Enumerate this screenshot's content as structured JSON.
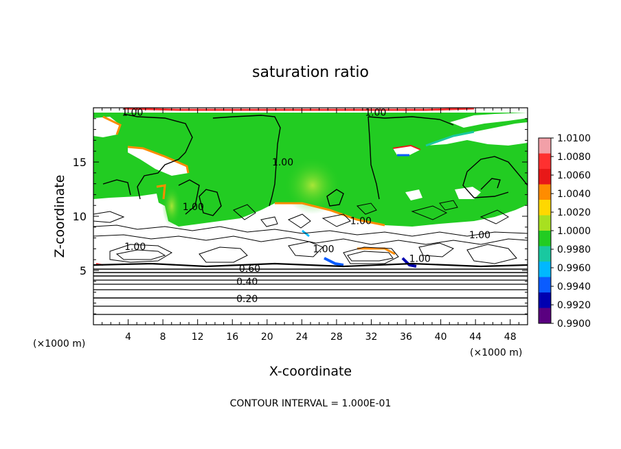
{
  "chart_data": {
    "type": "heatmap",
    "title": "saturation ratio",
    "xlabel": "X-coordinate",
    "ylabel": "Z-coordinate",
    "x_unit": "(×1000 m)",
    "z_unit": "(×1000 m)",
    "footer": "CONTOUR INTERVAL = 1.000E-01",
    "xlim": [
      0,
      50
    ],
    "ylim": [
      0,
      20
    ],
    "x_ticks": [
      "4",
      "8",
      "12",
      "16",
      "20",
      "24",
      "28",
      "32",
      "36",
      "40",
      "44",
      "48"
    ],
    "y_ticks": [
      "5",
      "10",
      "15"
    ],
    "colorbar": {
      "labels": [
        "1.0100",
        "1.0080",
        "1.0060",
        "1.0040",
        "1.0020",
        "1.0000",
        "0.9980",
        "0.9960",
        "0.9940",
        "0.9920",
        "0.9900"
      ],
      "colors": [
        "#f2a0a8",
        "#ff3030",
        "#e81818",
        "#ff8c00",
        "#ffd800",
        "#a8e020",
        "#22cc22",
        "#19c8a0",
        "#00b8ff",
        "#0a5cff",
        "#0000b0",
        "#5a0080"
      ]
    },
    "contour_interval": 0.1,
    "contour_labels": [
      {
        "text": "1.00",
        "x": 4.5,
        "z": 19.6
      },
      {
        "text": "1.00",
        "x": 32.5,
        "z": 19.6
      },
      {
        "text": "1.00",
        "x": 21.8,
        "z": 15.0
      },
      {
        "text": "1.00",
        "x": 11.5,
        "z": 10.9
      },
      {
        "text": "1.00",
        "x": 30.8,
        "z": 9.6
      },
      {
        "text": "1.00",
        "x": 4.8,
        "z": 7.2
      },
      {
        "text": "1.00",
        "x": 26.5,
        "z": 7.0
      },
      {
        "text": "1.00",
        "x": 37.6,
        "z": 6.1
      },
      {
        "text": "1.00",
        "x": 44.5,
        "z": 8.3
      },
      {
        "text": "0.60",
        "x": 18.0,
        "z": 5.2
      },
      {
        "text": "0.40",
        "x": 17.7,
        "z": 4.0
      },
      {
        "text": "0.20",
        "x": 17.7,
        "z": 2.4
      }
    ]
  }
}
